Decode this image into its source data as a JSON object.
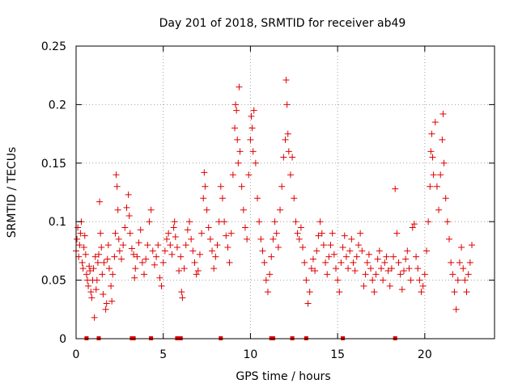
{
  "chart_data": {
    "type": "scatter",
    "title": "Day 201 of 2018, SRMTID for receiver ab49",
    "xlabel": "GPS time / hours",
    "ylabel": "SRMTID / TECUs",
    "xlim": [
      0,
      24
    ],
    "ylim": [
      0,
      0.25
    ],
    "x_ticks": [
      0,
      5,
      10,
      15,
      20
    ],
    "x_tick_labels": [
      "0",
      "5",
      "10",
      "15",
      "20"
    ],
    "y_ticks": [
      0,
      0.05,
      0.1,
      0.15,
      0.2,
      0.25
    ],
    "y_tick_labels": [
      "0",
      "0.05",
      "0.1",
      "0.15",
      "0.2",
      "0.25"
    ],
    "grid": true,
    "marker": "plus",
    "color": "#e00000",
    "series": [
      {
        "name": "SRMTID",
        "points": [
          [
            0.0,
            0.075
          ],
          [
            0.05,
            0.085
          ],
          [
            0.1,
            0.095
          ],
          [
            0.15,
            0.07
          ],
          [
            0.2,
            0.08
          ],
          [
            0.25,
            0.09
          ],
          [
            0.3,
            0.1
          ],
          [
            0.35,
            0.065
          ],
          [
            0.4,
            0.06
          ],
          [
            0.45,
            0.078
          ],
          [
            0.5,
            0.088
          ],
          [
            0.55,
            0.072
          ],
          [
            0.6,
            0.055
          ],
          [
            0.65,
            0.05
          ],
          [
            0.7,
            0.045
          ],
          [
            0.75,
            0.062
          ],
          [
            0.8,
            0.058
          ],
          [
            0.85,
            0.04
          ],
          [
            0.9,
            0.035
          ],
          [
            0.95,
            0.05
          ],
          [
            1.0,
            0.06
          ],
          [
            1.05,
            0.018
          ],
          [
            1.1,
            0.07
          ],
          [
            1.15,
            0.042
          ],
          [
            1.2,
            0.05
          ],
          [
            1.25,
            0.065
          ],
          [
            1.3,
            0.072
          ],
          [
            1.35,
            0.117
          ],
          [
            1.4,
            0.09
          ],
          [
            1.45,
            0.078
          ],
          [
            1.5,
            0.055
          ],
          [
            1.55,
            0.038
          ],
          [
            1.6,
            0.065
          ],
          [
            1.7,
            0.025
          ],
          [
            1.75,
            0.03
          ],
          [
            1.8,
            0.068
          ],
          [
            1.85,
            0.08
          ],
          [
            1.9,
            0.06
          ],
          [
            2.0,
            0.045
          ],
          [
            2.05,
            0.032
          ],
          [
            2.1,
            0.055
          ],
          [
            2.2,
            0.07
          ],
          [
            2.25,
            0.09
          ],
          [
            2.3,
            0.14
          ],
          [
            2.35,
            0.13
          ],
          [
            2.4,
            0.11
          ],
          [
            2.45,
            0.085
          ],
          [
            2.5,
            0.075
          ],
          [
            2.6,
            0.068
          ],
          [
            2.7,
            0.08
          ],
          [
            2.8,
            0.095
          ],
          [
            2.9,
            0.112
          ],
          [
            3.0,
            0.123
          ],
          [
            3.05,
            0.105
          ],
          [
            3.1,
            0.09
          ],
          [
            3.2,
            0.077
          ],
          [
            3.3,
            0.072
          ],
          [
            3.35,
            0.052
          ],
          [
            3.4,
            0.06
          ],
          [
            3.5,
            0.07
          ],
          [
            3.6,
            0.082
          ],
          [
            3.7,
            0.093
          ],
          [
            3.8,
            0.065
          ],
          [
            3.9,
            0.055
          ],
          [
            4.0,
            0.068
          ],
          [
            4.1,
            0.08
          ],
          [
            4.2,
            0.1
          ],
          [
            4.3,
            0.11
          ],
          [
            4.4,
            0.075
          ],
          [
            4.5,
            0.063
          ],
          [
            4.6,
            0.07
          ],
          [
            4.7,
            0.08
          ],
          [
            4.8,
            0.052
          ],
          [
            4.9,
            0.045
          ],
          [
            5.0,
            0.065
          ],
          [
            5.1,
            0.075
          ],
          [
            5.2,
            0.085
          ],
          [
            5.3,
            0.09
          ],
          [
            5.4,
            0.08
          ],
          [
            5.5,
            0.072
          ],
          [
            5.6,
            0.095
          ],
          [
            5.65,
            0.1
          ],
          [
            5.7,
            0.087
          ],
          [
            5.8,
            0.078
          ],
          [
            5.9,
            0.058
          ],
          [
            6.0,
            0.07
          ],
          [
            6.05,
            0.04
          ],
          [
            6.1,
            0.035
          ],
          [
            6.2,
            0.06
          ],
          [
            6.3,
            0.08
          ],
          [
            6.4,
            0.093
          ],
          [
            6.5,
            0.1
          ],
          [
            6.6,
            0.085
          ],
          [
            6.7,
            0.075
          ],
          [
            6.8,
            0.065
          ],
          [
            6.9,
            0.055
          ],
          [
            7.0,
            0.058
          ],
          [
            7.1,
            0.072
          ],
          [
            7.2,
            0.09
          ],
          [
            7.3,
            0.12
          ],
          [
            7.35,
            0.142
          ],
          [
            7.4,
            0.13
          ],
          [
            7.5,
            0.11
          ],
          [
            7.6,
            0.095
          ],
          [
            7.7,
            0.085
          ],
          [
            7.8,
            0.075
          ],
          [
            7.9,
            0.06
          ],
          [
            8.0,
            0.07
          ],
          [
            8.1,
            0.08
          ],
          [
            8.2,
            0.1
          ],
          [
            8.3,
            0.13
          ],
          [
            8.4,
            0.12
          ],
          [
            8.5,
            0.1
          ],
          [
            8.6,
            0.088
          ],
          [
            8.7,
            0.078
          ],
          [
            8.8,
            0.065
          ],
          [
            8.9,
            0.09
          ],
          [
            9.0,
            0.14
          ],
          [
            9.1,
            0.18
          ],
          [
            9.15,
            0.2
          ],
          [
            9.2,
            0.195
          ],
          [
            9.25,
            0.17
          ],
          [
            9.3,
            0.15
          ],
          [
            9.35,
            0.215
          ],
          [
            9.4,
            0.16
          ],
          [
            9.5,
            0.13
          ],
          [
            9.6,
            0.11
          ],
          [
            9.7,
            0.095
          ],
          [
            9.8,
            0.085
          ],
          [
            9.9,
            0.14
          ],
          [
            10.0,
            0.17
          ],
          [
            10.05,
            0.19
          ],
          [
            10.1,
            0.18
          ],
          [
            10.15,
            0.16
          ],
          [
            10.2,
            0.195
          ],
          [
            10.3,
            0.15
          ],
          [
            10.4,
            0.12
          ],
          [
            10.5,
            0.1
          ],
          [
            10.6,
            0.085
          ],
          [
            10.7,
            0.075
          ],
          [
            10.8,
            0.065
          ],
          [
            10.9,
            0.05
          ],
          [
            11.0,
            0.04
          ],
          [
            11.1,
            0.055
          ],
          [
            11.2,
            0.07
          ],
          [
            11.3,
            0.085
          ],
          [
            11.4,
            0.1
          ],
          [
            11.5,
            0.09
          ],
          [
            11.6,
            0.078
          ],
          [
            11.7,
            0.11
          ],
          [
            11.8,
            0.13
          ],
          [
            11.9,
            0.155
          ],
          [
            12.0,
            0.17
          ],
          [
            12.05,
            0.221
          ],
          [
            12.1,
            0.2
          ],
          [
            12.15,
            0.175
          ],
          [
            12.2,
            0.16
          ],
          [
            12.3,
            0.14
          ],
          [
            12.4,
            0.155
          ],
          [
            12.5,
            0.12
          ],
          [
            12.6,
            0.1
          ],
          [
            12.7,
            0.09
          ],
          [
            12.8,
            0.085
          ],
          [
            12.9,
            0.095
          ],
          [
            13.0,
            0.078
          ],
          [
            13.1,
            0.065
          ],
          [
            13.2,
            0.05
          ],
          [
            13.3,
            0.03
          ],
          [
            13.4,
            0.04
          ],
          [
            13.5,
            0.06
          ],
          [
            13.6,
            0.068
          ],
          [
            13.7,
            0.058
          ],
          [
            13.8,
            0.075
          ],
          [
            13.9,
            0.088
          ],
          [
            14.0,
            0.1
          ],
          [
            14.1,
            0.09
          ],
          [
            14.2,
            0.08
          ],
          [
            14.3,
            0.065
          ],
          [
            14.4,
            0.055
          ],
          [
            14.5,
            0.07
          ],
          [
            14.6,
            0.08
          ],
          [
            14.7,
            0.09
          ],
          [
            14.8,
            0.072
          ],
          [
            14.9,
            0.06
          ],
          [
            15.0,
            0.05
          ],
          [
            15.1,
            0.04
          ],
          [
            15.2,
            0.065
          ],
          [
            15.3,
            0.078
          ],
          [
            15.4,
            0.088
          ],
          [
            15.5,
            0.07
          ],
          [
            15.6,
            0.06
          ],
          [
            15.7,
            0.075
          ],
          [
            15.8,
            0.085
          ],
          [
            15.9,
            0.065
          ],
          [
            16.0,
            0.058
          ],
          [
            16.1,
            0.07
          ],
          [
            16.2,
            0.08
          ],
          [
            16.3,
            0.09
          ],
          [
            16.4,
            0.075
          ],
          [
            16.5,
            0.045
          ],
          [
            16.6,
            0.055
          ],
          [
            16.7,
            0.065
          ],
          [
            16.8,
            0.072
          ],
          [
            16.9,
            0.06
          ],
          [
            17.0,
            0.05
          ],
          [
            17.1,
            0.04
          ],
          [
            17.2,
            0.055
          ],
          [
            17.3,
            0.068
          ],
          [
            17.4,
            0.075
          ],
          [
            17.5,
            0.06
          ],
          [
            17.6,
            0.05
          ],
          [
            17.7,
            0.065
          ],
          [
            17.8,
            0.07
          ],
          [
            17.9,
            0.058
          ],
          [
            18.0,
            0.045
          ],
          [
            18.1,
            0.06
          ],
          [
            18.2,
            0.07
          ],
          [
            18.3,
            0.128
          ],
          [
            18.4,
            0.09
          ],
          [
            18.5,
            0.065
          ],
          [
            18.6,
            0.055
          ],
          [
            18.7,
            0.042
          ],
          [
            18.8,
            0.058
          ],
          [
            18.9,
            0.068
          ],
          [
            19.0,
            0.075
          ],
          [
            19.1,
            0.06
          ],
          [
            19.2,
            0.05
          ],
          [
            19.3,
            0.095
          ],
          [
            19.4,
            0.098
          ],
          [
            19.5,
            0.07
          ],
          [
            19.6,
            0.06
          ],
          [
            19.7,
            0.05
          ],
          [
            19.8,
            0.04
          ],
          [
            19.9,
            0.045
          ],
          [
            20.0,
            0.055
          ],
          [
            20.1,
            0.075
          ],
          [
            20.2,
            0.1
          ],
          [
            20.3,
            0.13
          ],
          [
            20.35,
            0.16
          ],
          [
            20.4,
            0.175
          ],
          [
            20.45,
            0.155
          ],
          [
            20.5,
            0.14
          ],
          [
            20.6,
            0.185
          ],
          [
            20.7,
            0.13
          ],
          [
            20.8,
            0.11
          ],
          [
            20.9,
            0.14
          ],
          [
            21.0,
            0.17
          ],
          [
            21.05,
            0.192
          ],
          [
            21.1,
            0.15
          ],
          [
            21.2,
            0.12
          ],
          [
            21.3,
            0.1
          ],
          [
            21.4,
            0.085
          ],
          [
            21.5,
            0.065
          ],
          [
            21.6,
            0.055
          ],
          [
            21.7,
            0.04
          ],
          [
            21.8,
            0.025
          ],
          [
            21.9,
            0.05
          ],
          [
            22.0,
            0.065
          ],
          [
            22.1,
            0.078
          ],
          [
            22.2,
            0.06
          ],
          [
            22.3,
            0.05
          ],
          [
            22.4,
            0.04
          ],
          [
            22.5,
            0.055
          ],
          [
            22.6,
            0.065
          ],
          [
            22.7,
            0.08
          ]
        ]
      }
    ],
    "zero_markers": [
      0.6,
      1.3,
      3.2,
      3.3,
      4.3,
      5.8,
      6.0,
      8.3,
      11.2,
      11.3,
      12.4,
      13.2,
      15.3,
      18.3
    ]
  }
}
